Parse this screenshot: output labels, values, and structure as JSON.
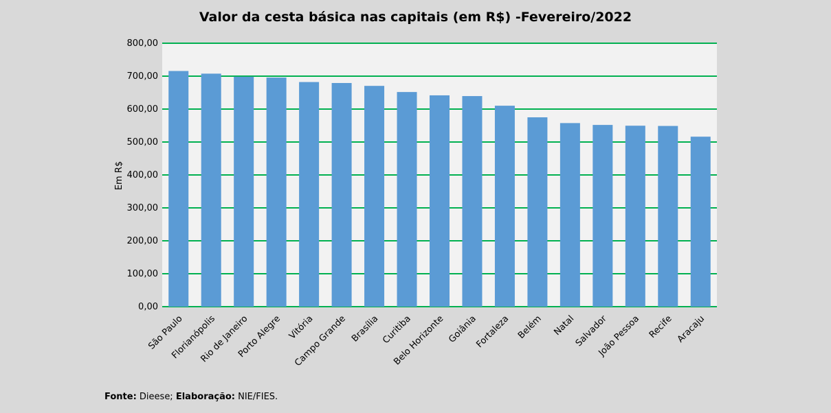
{
  "chart_data": {
    "type": "bar",
    "title": "Valor da cesta básica nas capitais (em R$) -Fevereiro/2022",
    "xlabel": "",
    "ylabel": "Em R$",
    "ylim": [
      0,
      800
    ],
    "yticks": [
      "0,00",
      "100,00",
      "200,00",
      "300,00",
      "400,00",
      "500,00",
      "600,00",
      "700,00",
      "800,00"
    ],
    "grid": true,
    "categories": [
      "São Paulo",
      "Florianópolis",
      "Rio de Janeiro",
      "Porto Alegre",
      "Vitória",
      "Campo Grande",
      "Brasília",
      "Curitiba",
      "Belo Horizonte",
      "Goiânia",
      "Fortaleza",
      "Belém",
      "Natal",
      "Salvador",
      "João Pessoa",
      "Recife",
      "Aracaju"
    ],
    "values": [
      715.65,
      707.61,
      698.28,
      695.67,
      682.13,
      679.19,
      670.45,
      651.82,
      641.73,
      639.49,
      610.22,
      575.02,
      557.5,
      551.88,
      549.52,
      548.79,
      516.19
    ],
    "colors": {
      "bar": "#5b9bd5",
      "grid": "#00b050",
      "plot_bg": "#f2f2f2",
      "page_bg": "#d9d9d9"
    }
  },
  "footer": {
    "fonte_label": "Fonte:",
    "fonte_value": "Dieese;",
    "elaboracao_label": "Elaboração:",
    "elaboracao_value": "NIE/FIES."
  }
}
